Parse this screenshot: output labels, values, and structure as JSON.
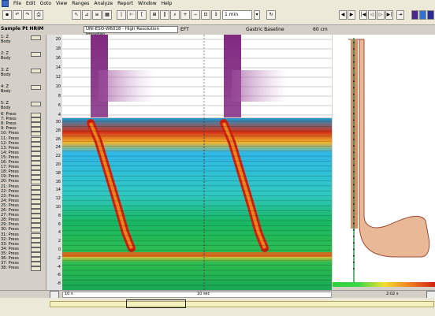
{
  "menu": [
    "File",
    "Edit",
    "Goto",
    "View",
    "Ranges",
    "Analyze",
    "Report",
    "Window",
    "Help"
  ],
  "toolbar": {
    "time_window": "1 min"
  },
  "header": {
    "sample_title": "Sample Pt HRIM",
    "catheter_select": "UNI-ESO-W6018 - High Resolution Impedan",
    "eft_label": "EFT",
    "gastric_label": "Gastric Baseline",
    "depth_label": "60 cm"
  },
  "channels": [
    {
      "label": "1: Z",
      "sub": "Body"
    },
    {
      "label": "2: Z",
      "sub": "Body"
    },
    {
      "label": "3: Z",
      "sub": "Body"
    },
    {
      "label": "4: Z",
      "sub": "Body"
    },
    {
      "label": "5: Z",
      "sub": "Body"
    },
    {
      "label": "6: Press"
    },
    {
      "label": "7: Press"
    },
    {
      "label": "8: Press"
    },
    {
      "label": "9: Press"
    },
    {
      "label": "10: Press"
    },
    {
      "label": "11: Press"
    },
    {
      "label": "12: Press"
    },
    {
      "label": "13: Press"
    },
    {
      "label": "14: Press"
    },
    {
      "label": "15: Press"
    },
    {
      "label": "16: Press"
    },
    {
      "label": "17: Press"
    },
    {
      "label": "18: Press"
    },
    {
      "label": "19: Press"
    },
    {
      "label": "20: Press"
    },
    {
      "label": "21: Press"
    },
    {
      "label": "22: Press"
    },
    {
      "label": "23: Press"
    },
    {
      "label": "24: Press"
    },
    {
      "label": "25: Press"
    },
    {
      "label": "26: Press"
    },
    {
      "label": "27: Press"
    },
    {
      "label": "28: Press"
    },
    {
      "label": "29: Press"
    },
    {
      "label": "30: Press"
    },
    {
      "label": "31: Press"
    },
    {
      "label": "32: Press"
    },
    {
      "label": "33: Press"
    },
    {
      "label": "34: Press"
    },
    {
      "label": "35: Press"
    },
    {
      "label": "36: Press"
    },
    {
      "label": "37: Press"
    },
    {
      "label": "38: Press"
    }
  ],
  "impedance_axis": [
    "20",
    "18",
    "16",
    "14",
    "12",
    "10",
    "8",
    "6",
    "4"
  ],
  "pressure_axis": [
    "30",
    "28",
    "26",
    "24",
    "22",
    "20",
    "18",
    "16",
    "14",
    "12",
    "10",
    "8",
    "6",
    "4",
    "2",
    "0",
    "-2",
    "-4",
    "-6",
    "-8"
  ],
  "timeline": {
    "left_time": "10 s",
    "mid_time": "10 sec",
    "right_time": "2:02 s"
  },
  "colors": {
    "impedance": "#7a1f7a",
    "high_pressure": "#c81e10",
    "mid_pressure": "#f0a020",
    "low_pressure": "#19b865",
    "baseline": "#2fb8e8"
  }
}
